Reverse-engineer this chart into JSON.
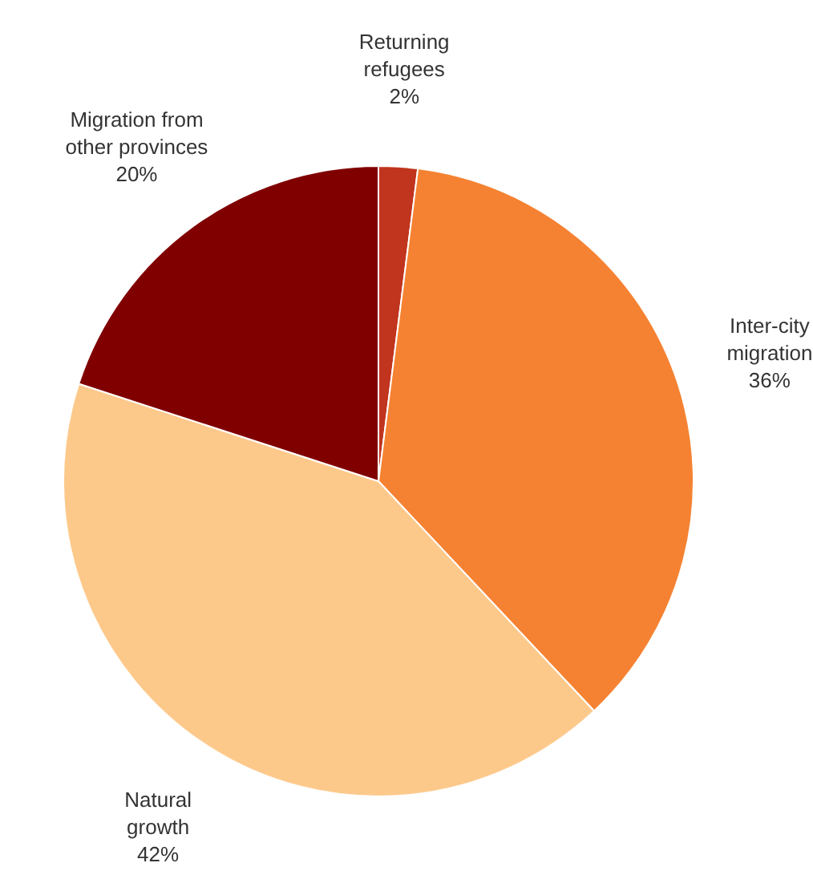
{
  "chart_data": {
    "type": "pie",
    "categories": [
      "Returning refugees",
      "Inter-city migration",
      "Natural growth",
      "Migration from other provinces"
    ],
    "values": [
      2,
      36,
      42,
      20
    ],
    "colors": [
      "#c1341e",
      "#f58232",
      "#fdc98b",
      "#800000"
    ],
    "value_labels": [
      "2%",
      "36%",
      "42%",
      "20%"
    ],
    "legend": false
  }
}
